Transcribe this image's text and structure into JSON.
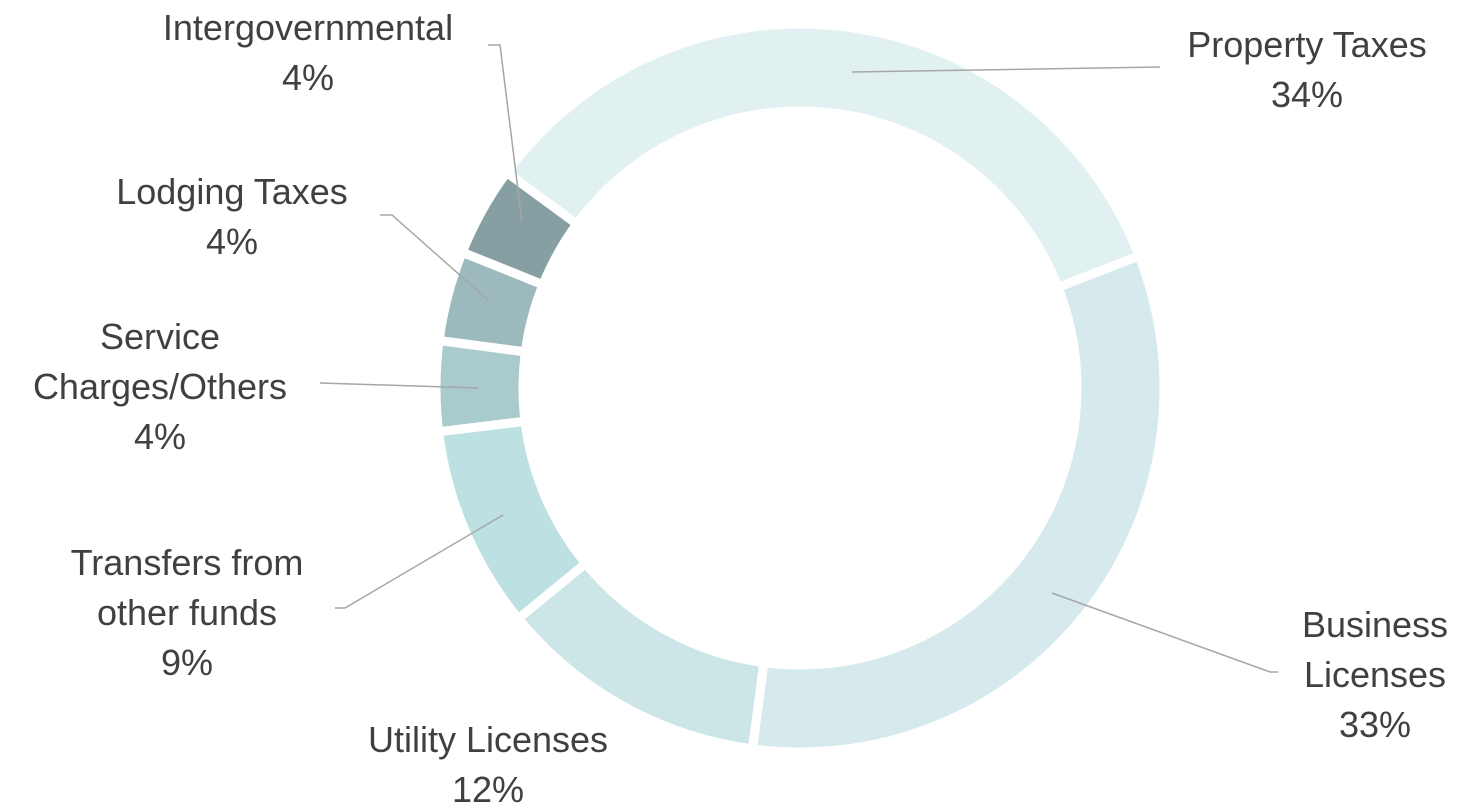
{
  "chart_data": {
    "type": "donut",
    "categories": [
      "Property Taxes",
      "Business Licenses",
      "Utility Licenses",
      "Transfers from other funds",
      "Service Charges/Others",
      "Lodging Taxes",
      "Intergovernmental"
    ],
    "values": [
      34,
      33,
      12,
      9,
      4,
      4,
      4
    ],
    "value_labels": [
      "34%",
      "33%",
      "12%",
      "9%",
      "4%",
      "4%",
      "4%"
    ],
    "colors": [
      "#e1f0f1",
      "#d6eaed",
      "#cce6e8",
      "#bde0e3",
      "#aacbcd",
      "#9cbabd",
      "#859fa2"
    ]
  }
}
